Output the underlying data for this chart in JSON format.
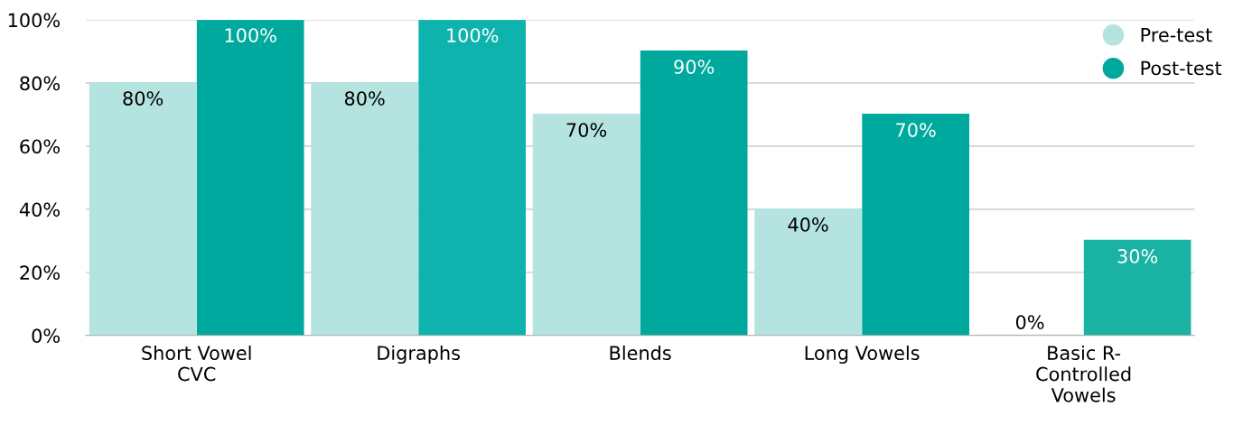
{
  "chart_data": {
    "type": "bar",
    "categories": [
      "Short Vowel\nCVC",
      "Digraphs",
      "Blends",
      "Long Vowels",
      "Basic R-\nControlled\nVowels"
    ],
    "series": [
      {
        "name": "Pre-test",
        "color": "#b5e4e0",
        "values": [
          80,
          80,
          70,
          40,
          0
        ],
        "value_labels": [
          "80%",
          "80%",
          "70%",
          "40%",
          "0%"
        ]
      },
      {
        "name": "Post-test",
        "color": "#00a99d",
        "colors": [
          "#00a99d",
          "#0fb3ae",
          "#00a99d",
          "#00a99d",
          "#1ab3a3"
        ],
        "values": [
          100,
          100,
          90,
          70,
          30
        ],
        "value_labels": [
          "100%",
          "100%",
          "90%",
          "70%",
          "30%"
        ]
      }
    ],
    "ylim": [
      0,
      100
    ],
    "yticks": [
      {
        "value": 0,
        "label": "0%"
      },
      {
        "value": 20,
        "label": "20%"
      },
      {
        "value": 40,
        "label": "40%"
      },
      {
        "value": 60,
        "label": "60%"
      },
      {
        "value": 80,
        "label": "80%"
      },
      {
        "value": 100,
        "label": "100%"
      }
    ],
    "grid": "y",
    "legend": "top right"
  }
}
